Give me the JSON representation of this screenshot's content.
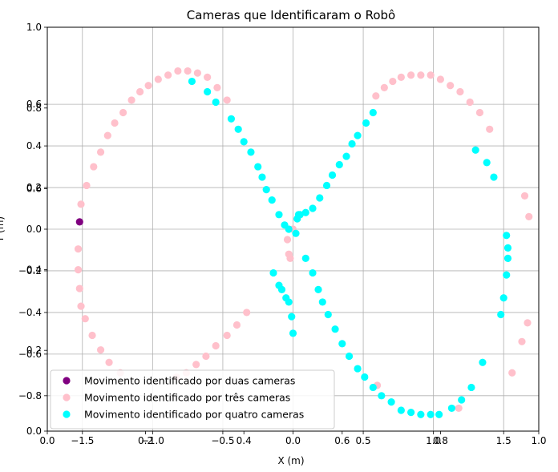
{
  "chart_data": {
    "type": "scatter",
    "title": "Cameras que Identificaram o Robô",
    "xlabel": "X (m)",
    "ylabel": "Y (m)",
    "xlim": [
      -1.75,
      1.75
    ],
    "ylim": [
      -0.97,
      0.97
    ],
    "grid": true,
    "legend_position": "lower-left",
    "x_ticks": [
      -1.5,
      -1.0,
      -0.5,
      0.0,
      0.5,
      1.0,
      1.5
    ],
    "x_tick_labels": [
      "−1.5",
      "−1.0",
      "−0.5",
      "0.0",
      "0.5",
      "1.0",
      "1.5"
    ],
    "y_ticks": [
      -0.8,
      -0.6,
      -0.4,
      -0.2,
      0.0,
      0.2,
      0.4,
      0.6
    ],
    "y_tick_labels": [
      "−0.8",
      "−0.6",
      "−0.4",
      "−0.2",
      "0.0",
      "0.2",
      "0.4",
      "0.6"
    ],
    "overlay_axes": {
      "x_ticks": [
        0.0,
        0.2,
        0.4,
        0.6,
        0.8,
        1.0
      ],
      "x_tick_labels": [
        "0.0",
        "0.2",
        "0.4",
        "0.6",
        "0.8",
        "1.0"
      ],
      "y_ticks": [
        0.0,
        0.2,
        0.4,
        0.6,
        0.8,
        1.0
      ],
      "y_tick_labels": [
        "0.0",
        "0.2",
        "0.4",
        "0.6",
        "0.8",
        "1.0"
      ]
    },
    "series": [
      {
        "name": "Movimento identificado por duas cameras",
        "color": "#800080",
        "points": [
          [
            -1.52,
            0.035
          ]
        ]
      },
      {
        "name": "Movimento identificado por três cameras",
        "color": "#ffc0cb",
        "points": [
          [
            -1.53,
            -0.095
          ],
          [
            -1.53,
            -0.195
          ],
          [
            -1.52,
            -0.285
          ],
          [
            -1.51,
            -0.37
          ],
          [
            -1.48,
            -0.43
          ],
          [
            -1.43,
            -0.51
          ],
          [
            -1.37,
            -0.58
          ],
          [
            -1.31,
            -0.64
          ],
          [
            -1.23,
            -0.69
          ],
          [
            -1.51,
            0.12
          ],
          [
            -1.47,
            0.21
          ],
          [
            -1.42,
            0.3
          ],
          [
            -1.37,
            0.37
          ],
          [
            -1.32,
            0.45
          ],
          [
            -1.27,
            0.51
          ],
          [
            -1.21,
            0.56
          ],
          [
            -1.15,
            0.62
          ],
          [
            -1.09,
            0.66
          ],
          [
            -1.03,
            0.69
          ],
          [
            -0.96,
            0.72
          ],
          [
            -0.89,
            0.74
          ],
          [
            -0.82,
            0.76
          ],
          [
            -0.75,
            0.76
          ],
          [
            -0.68,
            0.75
          ],
          [
            -0.61,
            0.73
          ],
          [
            -0.54,
            0.68
          ],
          [
            -0.47,
            0.62
          ],
          [
            -0.83,
            -0.71
          ],
          [
            -0.76,
            -0.69
          ],
          [
            -0.69,
            -0.65
          ],
          [
            -0.62,
            -0.61
          ],
          [
            -0.55,
            -0.56
          ],
          [
            -0.47,
            -0.51
          ],
          [
            -0.4,
            -0.46
          ],
          [
            -0.33,
            -0.4
          ],
          [
            -0.04,
            -0.05
          ],
          [
            -0.03,
            -0.12
          ],
          [
            -0.02,
            -0.14
          ],
          [
            0.0,
            0.0
          ],
          [
            0.03,
            0.05
          ],
          [
            0.59,
            0.64
          ],
          [
            0.65,
            0.68
          ],
          [
            0.71,
            0.71
          ],
          [
            0.77,
            0.73
          ],
          [
            0.84,
            0.74
          ],
          [
            0.91,
            0.74
          ],
          [
            0.98,
            0.74
          ],
          [
            1.05,
            0.72
          ],
          [
            1.12,
            0.69
          ],
          [
            1.19,
            0.66
          ],
          [
            1.26,
            0.61
          ],
          [
            1.33,
            0.56
          ],
          [
            1.4,
            0.48
          ],
          [
            1.65,
            0.16
          ],
          [
            1.68,
            0.06
          ],
          [
            1.67,
            -0.45
          ],
          [
            1.63,
            -0.54
          ],
          [
            1.56,
            -0.69
          ],
          [
            1.18,
            -0.86
          ],
          [
            0.6,
            -0.75
          ]
        ]
      },
      {
        "name": "Movimento identificado por quatro cameras",
        "color": "#00ffff",
        "points": [
          [
            -0.72,
            0.71
          ],
          [
            -0.61,
            0.66
          ],
          [
            -0.55,
            0.61
          ],
          [
            -0.44,
            0.53
          ],
          [
            -0.39,
            0.48
          ],
          [
            -0.35,
            0.42
          ],
          [
            -0.3,
            0.37
          ],
          [
            -0.25,
            0.3
          ],
          [
            -0.22,
            0.25
          ],
          [
            -0.19,
            0.19
          ],
          [
            -0.15,
            0.14
          ],
          [
            -0.1,
            0.07
          ],
          [
            -0.06,
            0.02
          ],
          [
            -0.03,
            0.0
          ],
          [
            0.02,
            -0.02
          ],
          [
            0.03,
            0.05
          ],
          [
            0.04,
            0.07
          ],
          [
            0.05,
            0.07
          ],
          [
            0.09,
            0.08
          ],
          [
            0.14,
            0.1
          ],
          [
            0.19,
            0.15
          ],
          [
            0.24,
            0.21
          ],
          [
            0.28,
            0.26
          ],
          [
            0.33,
            0.31
          ],
          [
            0.38,
            0.35
          ],
          [
            0.42,
            0.41
          ],
          [
            0.46,
            0.45
          ],
          [
            0.52,
            0.51
          ],
          [
            0.57,
            0.56
          ],
          [
            0.09,
            -0.14
          ],
          [
            0.14,
            -0.21
          ],
          [
            0.18,
            -0.29
          ],
          [
            0.21,
            -0.35
          ],
          [
            0.25,
            -0.41
          ],
          [
            0.3,
            -0.48
          ],
          [
            0.35,
            -0.55
          ],
          [
            0.4,
            -0.61
          ],
          [
            0.46,
            -0.67
          ],
          [
            0.51,
            -0.71
          ],
          [
            0.57,
            -0.76
          ],
          [
            0.63,
            -0.8
          ],
          [
            0.7,
            -0.83
          ],
          [
            0.77,
            -0.87
          ],
          [
            0.84,
            -0.88
          ],
          [
            0.91,
            -0.89
          ],
          [
            0.98,
            -0.89
          ],
          [
            1.04,
            -0.89
          ],
          [
            1.13,
            -0.86
          ],
          [
            1.2,
            -0.82
          ],
          [
            1.27,
            -0.76
          ],
          [
            1.35,
            -0.64
          ],
          [
            -0.14,
            -0.21
          ],
          [
            -0.1,
            -0.27
          ],
          [
            -0.08,
            -0.29
          ],
          [
            -0.05,
            -0.33
          ],
          [
            -0.03,
            -0.35
          ],
          [
            -0.01,
            -0.42
          ],
          [
            0.0,
            -0.5
          ],
          [
            1.3,
            0.38
          ],
          [
            1.38,
            0.32
          ],
          [
            1.43,
            0.25
          ],
          [
            1.52,
            -0.03
          ],
          [
            1.53,
            -0.09
          ],
          [
            1.53,
            -0.14
          ],
          [
            1.52,
            -0.22
          ],
          [
            1.5,
            -0.33
          ],
          [
            1.48,
            -0.41
          ]
        ]
      }
    ]
  }
}
